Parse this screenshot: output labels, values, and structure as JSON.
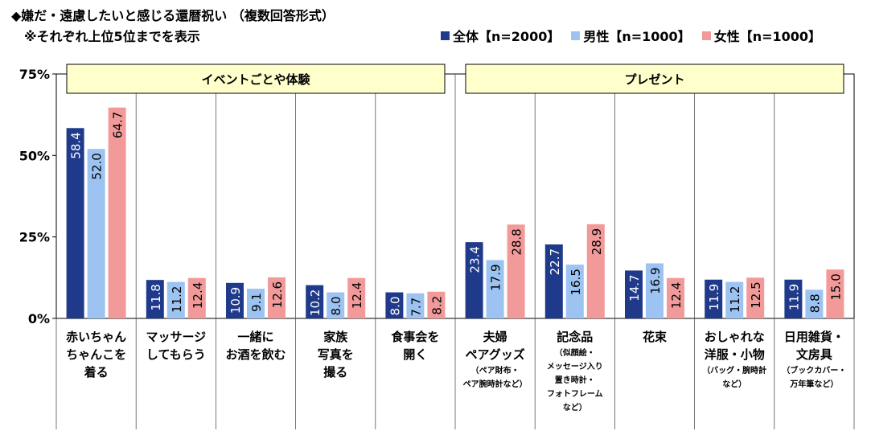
{
  "title": "◆嫌だ・遠慮したいと感じる還暦祝い （複数回答形式）",
  "subtitle": "※それぞれ上位5位までを表示",
  "colors": {
    "all": "#1F3A8A",
    "male": "#9DC3F2",
    "female": "#F29A9A",
    "group_box": "#FFFFCC"
  },
  "chart_data": {
    "type": "bar",
    "ylim": [
      0,
      75
    ],
    "yticks": [
      "0%",
      "25%",
      "50%",
      "75%"
    ],
    "ytick_values": [
      0,
      25,
      50,
      75
    ],
    "grid": false,
    "legend_position": "top-right",
    "groups": [
      {
        "label": "イベントごとや体験",
        "start": 0,
        "end": 4
      },
      {
        "label": "プレゼント",
        "start": 5,
        "end": 9
      }
    ],
    "categories": [
      {
        "lines": [
          "赤いちゃん",
          "ちゃんこを",
          "着る"
        ],
        "notes": []
      },
      {
        "lines": [
          "マッサージ",
          "してもらう"
        ],
        "notes": []
      },
      {
        "lines": [
          "一緒に",
          "お酒を飲む"
        ],
        "notes": []
      },
      {
        "lines": [
          "家族",
          "写真を",
          "撮る"
        ],
        "notes": []
      },
      {
        "lines": [
          "食事会を",
          "開く"
        ],
        "notes": []
      },
      {
        "lines": [
          "夫婦",
          "ペアグッズ"
        ],
        "notes": [
          "（ペア財布・",
          "ペア腕時計など）"
        ]
      },
      {
        "lines": [
          "記念品"
        ],
        "notes": [
          "（似顔絵・",
          "メッセージ入り",
          "置き時計・",
          "フォトフレーム",
          "など）"
        ]
      },
      {
        "lines": [
          "花束"
        ],
        "notes": []
      },
      {
        "lines": [
          "おしゃれな",
          "洋服・小物"
        ],
        "notes": [
          "（バッグ・腕時計",
          "など）"
        ]
      },
      {
        "lines": [
          "日用雑貨・",
          "文房具"
        ],
        "notes": [
          "（ブックカバー・",
          "万年筆など）"
        ]
      }
    ],
    "series": [
      {
        "name": "全体【n=2000】",
        "key": "all",
        "values": [
          58.4,
          11.8,
          10.9,
          10.2,
          8.0,
          23.4,
          22.7,
          14.7,
          11.9,
          11.9
        ]
      },
      {
        "name": "男性【n=1000】",
        "key": "male",
        "values": [
          52.0,
          11.2,
          9.1,
          8.0,
          7.7,
          17.9,
          16.5,
          16.9,
          11.2,
          8.8
        ]
      },
      {
        "name": "女性【n=1000】",
        "key": "female",
        "values": [
          64.7,
          12.4,
          12.6,
          12.4,
          8.2,
          28.8,
          28.9,
          12.4,
          12.5,
          15.0
        ]
      }
    ]
  }
}
